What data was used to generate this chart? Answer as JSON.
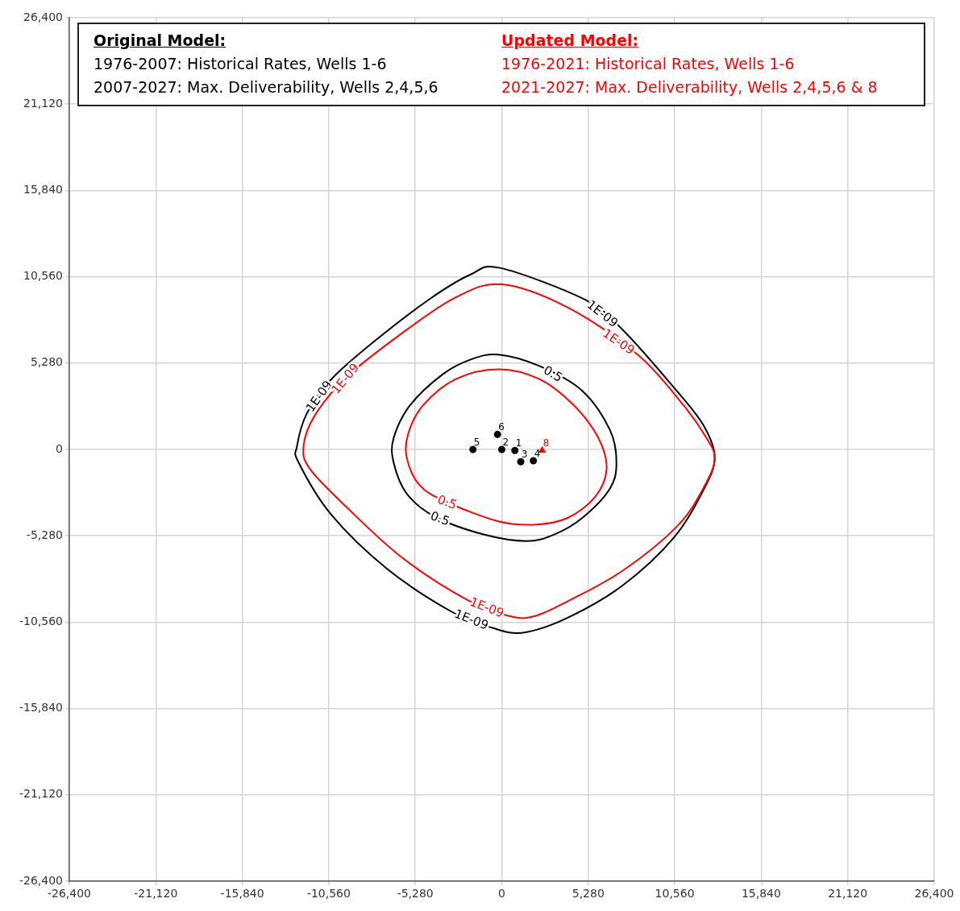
{
  "chart_data": {
    "type": "scatter",
    "xlim": [
      -26400,
      26400
    ],
    "ylim": [
      -26400,
      26400
    ],
    "xticks": [
      {
        "value": -26400,
        "label": "-26,400"
      },
      {
        "value": -21120,
        "label": "-21,120"
      },
      {
        "value": -15840,
        "label": "-15,840"
      },
      {
        "value": -10560,
        "label": "-10,560"
      },
      {
        "value": -5280,
        "label": "-5,280"
      },
      0,
      {
        "value": 5280,
        "label": "5,280"
      },
      {
        "value": 10560,
        "label": "10,560"
      },
      {
        "value": 15840,
        "label": "15,840"
      },
      {
        "value": 21120,
        "label": "21,120"
      },
      {
        "value": 26400,
        "label": "26,400"
      }
    ],
    "yticks": [
      {
        "value": -26400,
        "label": "-26,400"
      },
      {
        "value": -21120,
        "label": "-21,120"
      },
      {
        "value": -15840,
        "label": "-15,840"
      },
      {
        "value": -10560,
        "label": "-10,560"
      },
      {
        "value": -5280,
        "label": "-5,280"
      },
      0,
      {
        "value": 5280,
        "label": "5,280"
      },
      {
        "value": 10560,
        "label": "10,560"
      },
      {
        "value": 15840,
        "label": "15,840"
      },
      {
        "value": 21120,
        "label": "21,120"
      },
      {
        "value": 26400,
        "label": "26,400"
      }
    ],
    "grid": true,
    "legend": false,
    "series": [
      {
        "color": "#000000",
        "marker": "circle",
        "x": [
          -1760,
          -260,
          0,
          800,
          1160,
          1930
        ],
        "values": [
          0,
          920,
          0,
          -60,
          -750,
          -690
        ]
      },
      {
        "color": "#ff0000",
        "marker": "triangle",
        "x": [
          2470
        ],
        "values": [
          -60
        ]
      }
    ],
    "annotations": [
      "Original Model:",
      "1976-2007: Historical Rates, Wells 1-6",
      "2007-2027: Max. Deliverability, Wells 2,4,5,6",
      "Updated Model:",
      "1976-2021: Historical Rates, Wells 1-6",
      "2021-2027: Max. Deliverability, Wells 2,4,5,6 & 8",
      {
        "text": "5",
        "x": -1760,
        "y": 0
      },
      {
        "text": "6",
        "x": -260,
        "y": 920
      },
      {
        "text": "2",
        "x": 0,
        "y": 0
      },
      {
        "text": "1",
        "x": 800,
        "y": -60
      },
      {
        "text": "3",
        "x": 1160,
        "y": -750
      },
      {
        "text": "4",
        "x": 1930,
        "y": -690
      },
      {
        "text": "8",
        "x": 2470,
        "y": -60
      },
      "1E-09",
      "1E-09",
      "1E-09",
      "1E-09",
      "1E-09",
      "1E-09",
      "0.5",
      "0.5",
      "0.5"
    ]
  }
}
